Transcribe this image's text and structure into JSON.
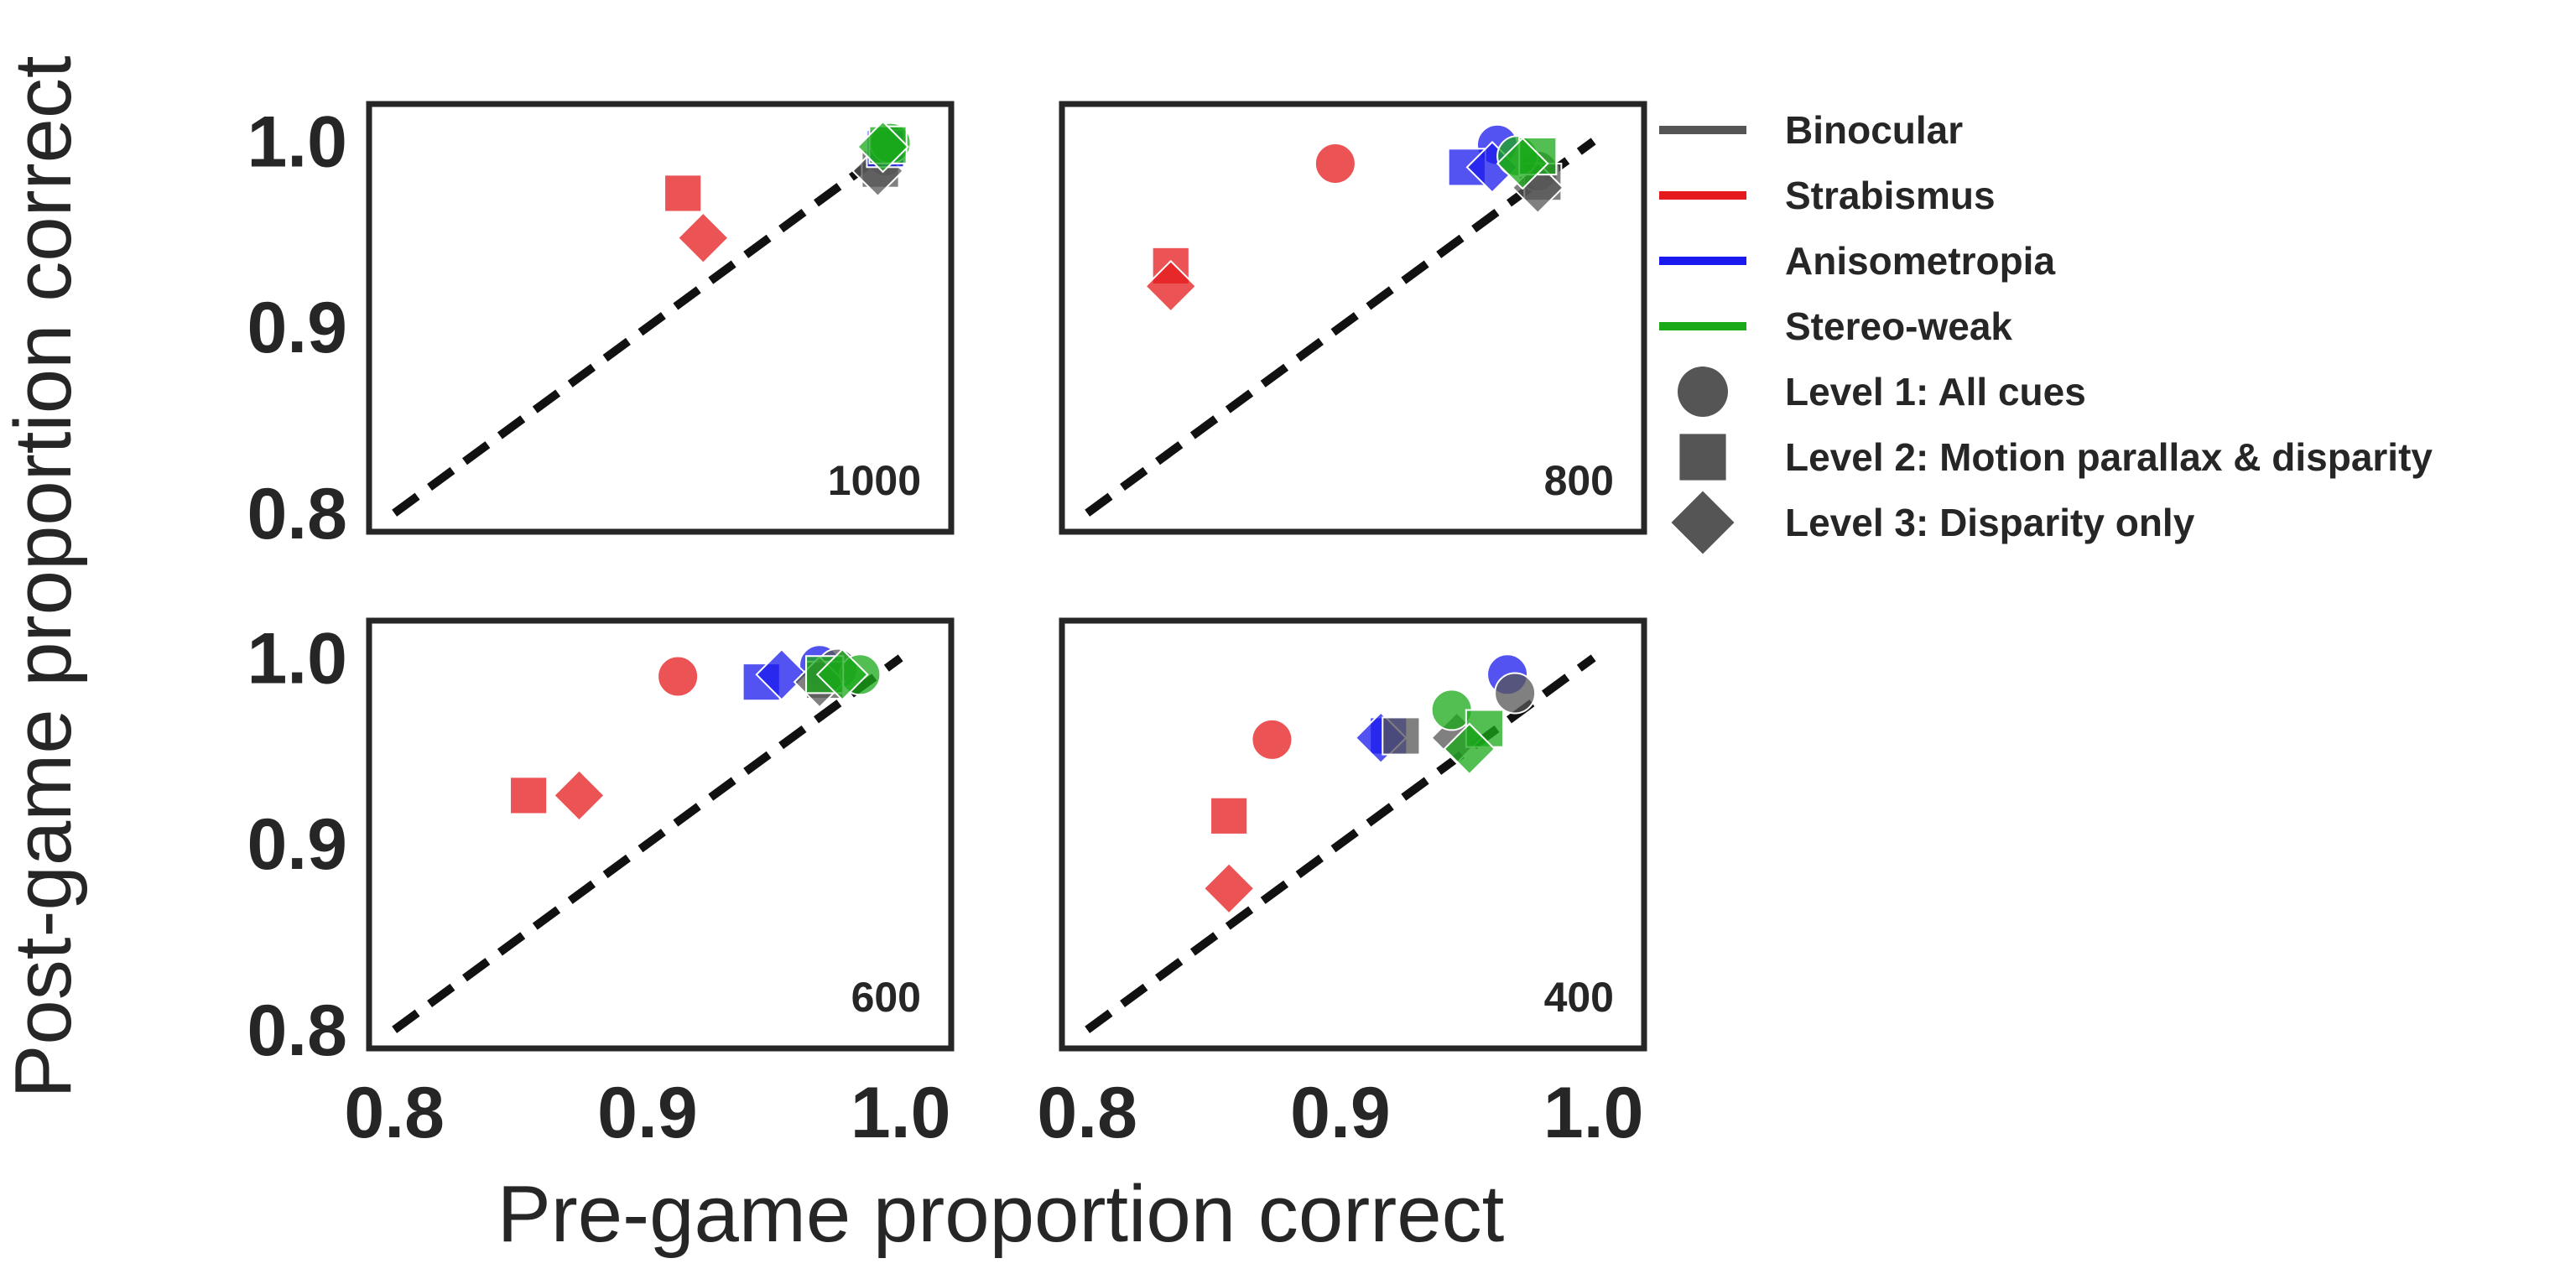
{
  "chart_data": {
    "type": "scatter",
    "xlabel": "Pre-game proportion correct",
    "ylabel": "Post-game proportion correct",
    "xlim": [
      0.79,
      1.02
    ],
    "ylim": [
      0.79,
      1.02
    ],
    "xticks": [
      "0.8",
      "0.9",
      "1.0"
    ],
    "yticks": [
      "0.8",
      "0.9",
      "1.0"
    ],
    "grid": false,
    "legend_position": "right",
    "groups": [
      {
        "name": "Binocular",
        "color": "#555555"
      },
      {
        "name": "Strabismus",
        "color": "#e41a1c"
      },
      {
        "name": "Anisometropia",
        "color": "#1a1aee"
      },
      {
        "name": "Stereo-weak",
        "color": "#1aaa1a"
      }
    ],
    "levels": [
      {
        "name": "Level 1: All cues",
        "marker": "circle"
      },
      {
        "name": "Level 2: Motion parallax & disparity",
        "marker": "square"
      },
      {
        "name": "Level 3: Disparity only",
        "marker": "diamond"
      }
    ],
    "panels": [
      {
        "label": "1000",
        "points": [
          {
            "group": "Strabismus",
            "marker": "square",
            "x": 0.914,
            "y": 0.972
          },
          {
            "group": "Strabismus",
            "marker": "diamond",
            "x": 0.922,
            "y": 0.948
          },
          {
            "group": "Binocular",
            "marker": "circle",
            "x": 0.994,
            "y": 0.992
          },
          {
            "group": "Binocular",
            "marker": "square",
            "x": 0.992,
            "y": 0.985
          },
          {
            "group": "Binocular",
            "marker": "diamond",
            "x": 0.991,
            "y": 0.984
          },
          {
            "group": "Anisometropia",
            "marker": "circle",
            "x": 0.995,
            "y": 0.998
          },
          {
            "group": "Anisometropia",
            "marker": "square",
            "x": 0.994,
            "y": 0.996
          },
          {
            "group": "Stereo-weak",
            "marker": "circle",
            "x": 0.996,
            "y": 0.999
          },
          {
            "group": "Stereo-weak",
            "marker": "square",
            "x": 0.995,
            "y": 0.998
          },
          {
            "group": "Stereo-weak",
            "marker": "diamond",
            "x": 0.993,
            "y": 0.997
          }
        ]
      },
      {
        "label": "800",
        "points": [
          {
            "group": "Strabismus",
            "marker": "circle",
            "x": 0.898,
            "y": 0.988
          },
          {
            "group": "Strabismus",
            "marker": "square",
            "x": 0.833,
            "y": 0.933
          },
          {
            "group": "Strabismus",
            "marker": "diamond",
            "x": 0.833,
            "y": 0.922
          },
          {
            "group": "Anisometropia",
            "marker": "circle",
            "x": 0.962,
            "y": 0.998
          },
          {
            "group": "Anisometropia",
            "marker": "square",
            "x": 0.95,
            "y": 0.986
          },
          {
            "group": "Anisometropia",
            "marker": "diamond",
            "x": 0.96,
            "y": 0.986
          },
          {
            "group": "Binocular",
            "marker": "circle",
            "x": 0.978,
            "y": 0.984
          },
          {
            "group": "Binocular",
            "marker": "square",
            "x": 0.98,
            "y": 0.978
          },
          {
            "group": "Binocular",
            "marker": "diamond",
            "x": 0.978,
            "y": 0.975
          },
          {
            "group": "Stereo-weak",
            "marker": "circle",
            "x": 0.97,
            "y": 0.992
          },
          {
            "group": "Stereo-weak",
            "marker": "square",
            "x": 0.978,
            "y": 0.992
          },
          {
            "group": "Stereo-weak",
            "marker": "diamond",
            "x": 0.972,
            "y": 0.988
          }
        ]
      },
      {
        "label": "600",
        "points": [
          {
            "group": "Strabismus",
            "marker": "circle",
            "x": 0.912,
            "y": 0.99
          },
          {
            "group": "Strabismus",
            "marker": "square",
            "x": 0.853,
            "y": 0.926
          },
          {
            "group": "Strabismus",
            "marker": "diamond",
            "x": 0.873,
            "y": 0.926
          },
          {
            "group": "Anisometropia",
            "marker": "circle",
            "x": 0.968,
            "y": 0.996
          },
          {
            "group": "Anisometropia",
            "marker": "square",
            "x": 0.945,
            "y": 0.987
          },
          {
            "group": "Anisometropia",
            "marker": "diamond",
            "x": 0.953,
            "y": 0.991
          },
          {
            "group": "Binocular",
            "marker": "circle",
            "x": 0.975,
            "y": 0.994
          },
          {
            "group": "Binocular",
            "marker": "square",
            "x": 0.97,
            "y": 0.988
          },
          {
            "group": "Binocular",
            "marker": "diamond",
            "x": 0.968,
            "y": 0.987
          },
          {
            "group": "Stereo-weak",
            "marker": "circle",
            "x": 0.984,
            "y": 0.991
          },
          {
            "group": "Stereo-weak",
            "marker": "square",
            "x": 0.97,
            "y": 0.991
          },
          {
            "group": "Stereo-weak",
            "marker": "diamond",
            "x": 0.977,
            "y": 0.991
          }
        ]
      },
      {
        "label": "400",
        "points": [
          {
            "group": "Strabismus",
            "marker": "circle",
            "x": 0.873,
            "y": 0.956
          },
          {
            "group": "Strabismus",
            "marker": "square",
            "x": 0.856,
            "y": 0.915
          },
          {
            "group": "Strabismus",
            "marker": "diamond",
            "x": 0.856,
            "y": 0.876
          },
          {
            "group": "Anisometropia",
            "marker": "circle",
            "x": 0.966,
            "y": 0.991
          },
          {
            "group": "Anisometropia",
            "marker": "square",
            "x": 0.919,
            "y": 0.958
          },
          {
            "group": "Anisometropia",
            "marker": "diamond",
            "x": 0.916,
            "y": 0.957
          },
          {
            "group": "Binocular",
            "marker": "circle",
            "x": 0.969,
            "y": 0.981
          },
          {
            "group": "Binocular",
            "marker": "square",
            "x": 0.924,
            "y": 0.958
          },
          {
            "group": "Binocular",
            "marker": "diamond",
            "x": 0.946,
            "y": 0.957
          },
          {
            "group": "Stereo-weak",
            "marker": "circle",
            "x": 0.944,
            "y": 0.972
          },
          {
            "group": "Stereo-weak",
            "marker": "square",
            "x": 0.957,
            "y": 0.962
          },
          {
            "group": "Stereo-weak",
            "marker": "diamond",
            "x": 0.951,
            "y": 0.951
          }
        ]
      }
    ]
  }
}
